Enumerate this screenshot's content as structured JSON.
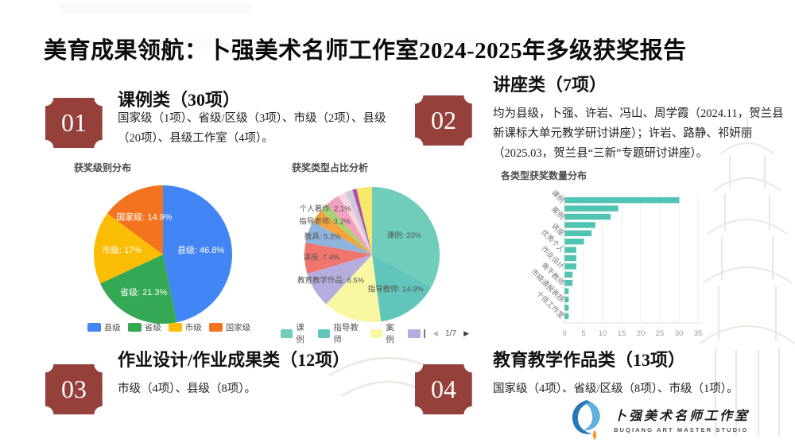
{
  "title": "美育成果领航：卜强美术名师工作室2024-2025年多级获奖报告",
  "colors": {
    "badge": "#96403B",
    "logo_blue_dark": "#2878B8",
    "logo_blue_light": "#5FB0DD",
    "logo_orange": "#F5962D"
  },
  "icons": {
    "legend_prev": "◀",
    "legend_next": "▶"
  },
  "sections": [
    {
      "number": "01",
      "heading": "课例类（30项）",
      "body": "国家级（1项）、省级/区级（3项）、市级（2项）、县级（20项）、县级工作室（4项）。"
    },
    {
      "number": "02",
      "heading": "讲座类（7项）",
      "body": "均为县级，卜强、许岩、冯山、周学霞（2024.11，贺兰县新课标大单元教学研讨讲座）；许岩、路静、祁妍丽（2025.03，贺兰县“三新”专题研讨讲座）。"
    },
    {
      "number": "03",
      "heading": "作业设计/作业成果类（12项）",
      "body": "市级（4项）、县级（8项）。"
    },
    {
      "number": "04",
      "heading": "教育教学作品类（13项）",
      "body": "国家级（4项）、省级/区级（8项）、市级（1项）。"
    }
  ],
  "logo": {
    "name_cn": "卜强美术名师工作室",
    "name_en": "BUQIANG ART MASTER STUDIO"
  },
  "chart_data": [
    {
      "type": "pie",
      "title": "获奖级别分布",
      "label_format": "{label}: {value}%",
      "label_color": "#ffffff",
      "label_radius": [
        0.55,
        0.62,
        0.6,
        0.6
      ],
      "legend_position": "bottom",
      "slices": [
        {
          "label": "县级",
          "value": 46.8,
          "color": "#4285F4"
        },
        {
          "label": "省级",
          "value": 21.3,
          "color": "#34A853"
        },
        {
          "label": "市级",
          "value": 17,
          "color": "#FBBC04"
        },
        {
          "label": "国家级",
          "value": 14.9,
          "color": "#F4731E"
        }
      ]
    },
    {
      "type": "pie",
      "title": "获奖类型占比分析",
      "label_format": "{label}: {value}%",
      "label_color": "#555555",
      "label_radius": [
        0.55,
        0.62,
        0,
        0.72,
        0.75,
        0.78,
        0.85,
        0.97
      ],
      "legend_position": "bottom",
      "legend_visible": [
        "课例",
        "指导教师",
        "案例"
      ],
      "legend_extra_swatch": "#B6ADDE",
      "legend_pagination": "1/7",
      "slices": [
        {
          "label": "课例",
          "value": 33,
          "color": "#70CDBB"
        },
        {
          "label": "指导教师",
          "value": 14.9,
          "color": "#62C5BC"
        },
        {
          "label": "案例",
          "value": 14,
          "color": "#FAF7A3",
          "labeled": false
        },
        {
          "label": "教育教学作品",
          "value": 8.5,
          "color": "#B6ADDE"
        },
        {
          "label": "讲座",
          "value": 7.4,
          "color": "#F0766D"
        },
        {
          "label": "教具",
          "value": 5.3,
          "color": "#8FB3DB"
        },
        {
          "label": "指导老师",
          "value": 3.2,
          "color": "#F5A43C"
        },
        {
          "label": "个人著作",
          "value": 2.1,
          "color": "#A6D472"
        },
        {
          "label": "",
          "value": 3.3,
          "color": "#F2A0BE"
        },
        {
          "label": "",
          "value": 1.9,
          "color": "#F7D4DE"
        },
        {
          "label": "",
          "value": 1.7,
          "color": "#CBCBDB"
        },
        {
          "label": "",
          "value": 1.0,
          "color": "#B04FA8"
        },
        {
          "label": "",
          "value": 3.7,
          "color": "#F6E868"
        }
      ]
    },
    {
      "type": "bar",
      "orientation": "horizontal",
      "title": "各类型获奖数量分布",
      "categories": [
        "课例",
        "",
        "案例",
        "",
        "讲座",
        "",
        "优秀个人",
        "",
        "作业设计",
        "",
        "骨干教师",
        "",
        "市级通报表扬",
        "",
        "十佳工作室"
      ],
      "values": [
        30,
        14,
        12,
        8,
        7,
        5,
        3,
        3,
        3,
        2,
        2,
        1,
        1,
        1,
        1
      ],
      "bar_color": "#4FC3B4",
      "xticks": [
        0,
        5,
        10,
        15,
        20,
        25,
        30,
        35
      ],
      "xlim": [
        0,
        35
      ],
      "grid": true,
      "legend_position": "none"
    }
  ]
}
